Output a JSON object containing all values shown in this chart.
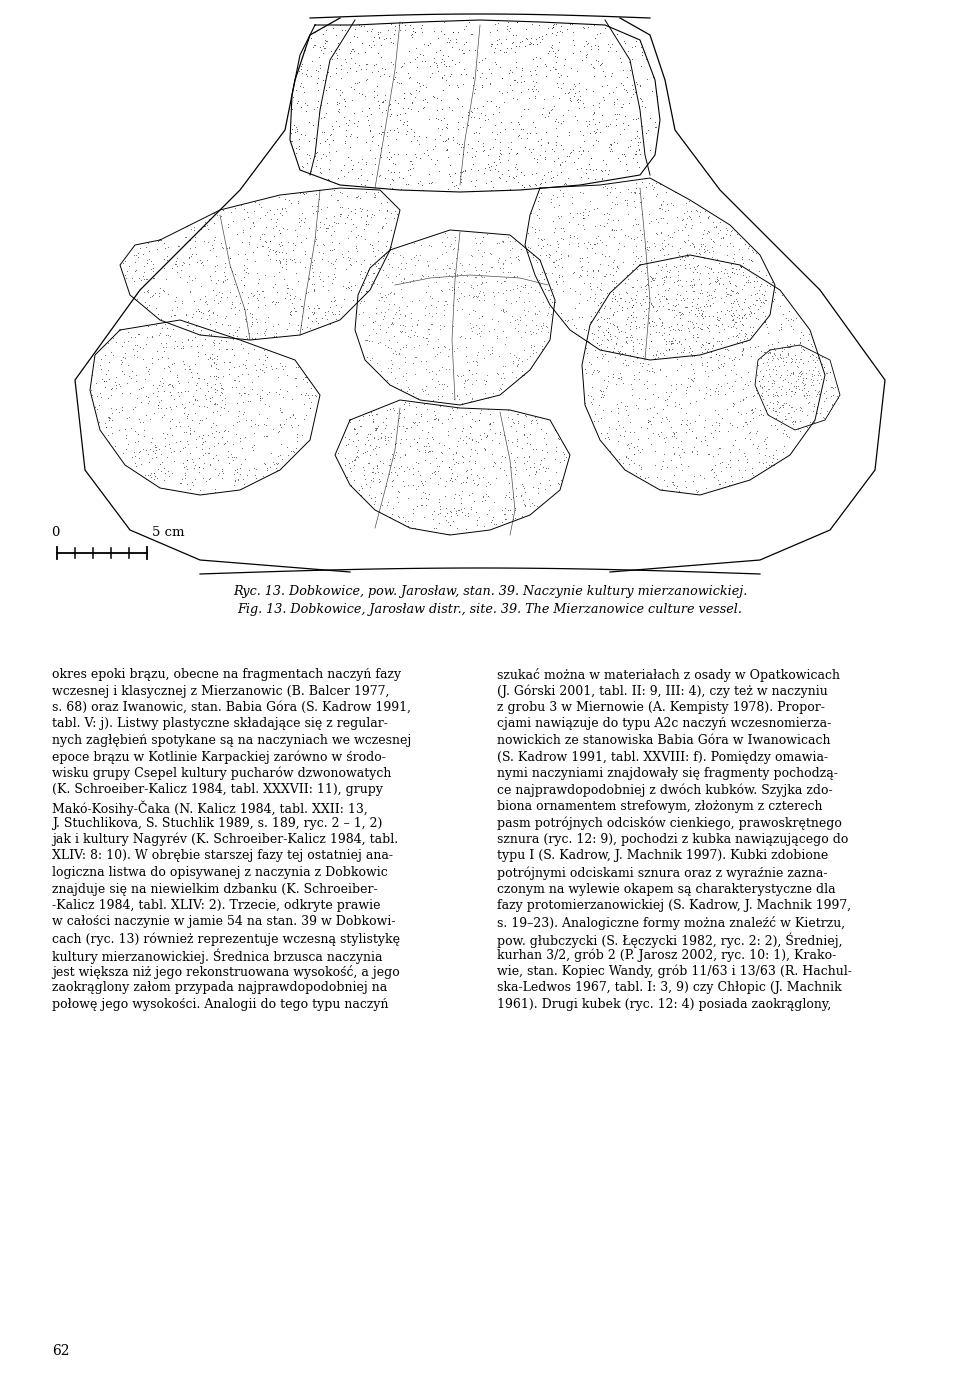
{
  "background_color": "#ffffff",
  "page_width": 9.6,
  "page_height": 13.76,
  "figure_caption_line1": "Ryc. 13. Dobkowice, pow. Jarosław, stan. 39. Naczynie kultury mierzanowickiej.",
  "figure_caption_line2": "Fig. 13. Dobkowice, Jarosław distr., site. 39. The Mierzanowice culture vessel.",
  "caption_fontsize": 9.2,
  "scale_label_0": "0",
  "scale_label_5cm": "5 cm",
  "text_fontsize": 9.0,
  "left_column_lines": [
    "okres epoki brązu, obecne na fragmentach naczyń fazy",
    "wczesnej i klasycznej z Mierzanowic (B. Balcer 1977,",
    "s. 68) oraz Iwanowic, stan. Babia Góra (S. Kadrow 1991,",
    "tabl. V: j). Listwy plastyczne składające się z regular-",
    "nych zagłębień spotykane są na naczyniach we wczesnej",
    "epoce brązu w Kotlinie Karpackiej zarówno w środo-",
    "wisku grupy Csepel kultury pucharów dzwonowatych",
    "(K. Schroeiber-Kalicz 1984, tabl. XXXVII: 11), grupy",
    "Makó-Kosihy-Čaka (N. Kalicz 1984, tabl. XXII: 13,",
    "J. Stuchlikova, S. Stuchlik 1989, s. 189, ryc. 2 – 1, 2)",
    "jak i kultury Nagyrév (K. Schroeiber-Kalicz 1984, tabl.",
    "XLIV: 8: 10). W obrębie starszej fazy tej ostatniej ana-",
    "logiczna listwa do opisywanej z naczynia z Dobkowic",
    "znajduje się na niewielkim dzbanku (K. Schroeiber-",
    "-Kalicz 1984, tabl. XLIV: 2). Trzecie, odkryte prawie",
    "w całości naczynie w jamie 54 na stan. 39 w Dobkowi-",
    "cach (ryc. 13) również reprezentuje wczesną stylistykę",
    "kultury mierzanowickiej. Średnica brzusca naczynia",
    "jest większa niż jego rekonstruowana wysokość, a jego",
    "zaokrąglony załom przypada najprawdopodobniej na",
    "połowę jego wysokości. Analogii do tego typu naczyń"
  ],
  "right_column_lines": [
    "szukać można w materiałach z osady w Opatkowicach",
    "(J. Górski 2001, tabl. II: 9, III: 4), czy też w naczyniu",
    "z grobu 3 w Miernowie (A. Kempisty 1978). Propor-",
    "cjami nawiązuje do typu A2c naczyń wczesnomierza-",
    "nowickich ze stanowiska Babia Góra w Iwanowicach",
    "(S. Kadrow 1991, tabl. XXVIII: f). Pomiędzy omawia-",
    "nymi naczyniami znajdowały się fragmenty pochodzą-",
    "ce najprawdopodobniej z dwóch kubków. Szyjka zdo-",
    "biona ornamentem strefowym, złożonym z czterech",
    "pasm potrójnych odcisków cienkiego, prawoskrętnego",
    "sznura (ryc. 12: 9), pochodzi z kubka nawiązującego do",
    "typu I (S. Kadrow, J. Machnik 1997). Kubki zdobione",
    "potrójnymi odciskami sznura oraz z wyraźnie zazna-",
    "czonym na wylewie okapem są charakterystyczne dla",
    "fazy protomierzanowickiej (S. Kadrow, J. Machnik 1997,",
    "s. 19–23). Analogiczne formy można znaleźć w Kietrzu,",
    "pow. głubczycki (S. Łęczycki 1982, ryc. 2: 2), Średniej,",
    "kurhan 3/2, grób 2 (P. Jarosz 2002, ryc. 10: 1), Krako-",
    "wie, stan. Kopiec Wandy, grób 11/63 i 13/63 (R. Hachul-",
    "ska-Ledwos 1967, tabl. I: 3, 9) czy Chłopic (J. Machnik",
    "1961). Drugi kubek (ryc. 12: 4) posiada zaokrąglony,"
  ],
  "page_number": "62"
}
